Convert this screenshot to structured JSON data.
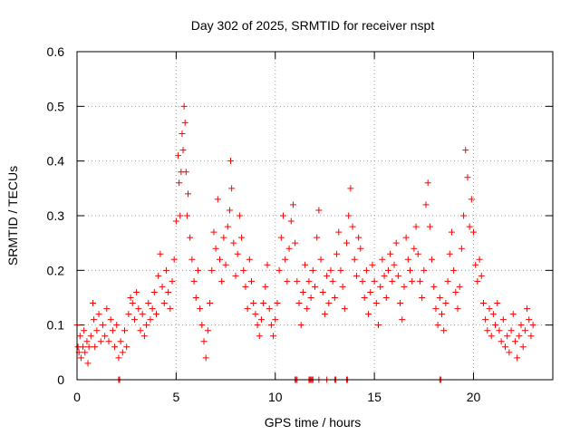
{
  "chart_data": {
    "type": "scatter",
    "title": "Day 302 of 2025, SRMTID for receiver nspt",
    "xlabel": "GPS time / hours",
    "ylabel": "SRMTID / TECUs",
    "xlim": [
      0,
      24
    ],
    "ylim": [
      0,
      0.6
    ],
    "grid": true,
    "x_ticks": [
      0,
      5,
      10,
      15,
      20
    ],
    "x_tick_labels": [
      "0",
      "5",
      "10",
      "15",
      "20"
    ],
    "y_ticks": [
      0,
      0.1,
      0.2,
      0.3,
      0.4,
      0.5,
      0.6
    ],
    "y_tick_labels": [
      "0",
      "0.1",
      "0.2",
      "0.3",
      "0.4",
      "0.5",
      "0.6"
    ],
    "marker": "+",
    "marker_color": "#ff0000",
    "series": [
      {
        "name": "SRMTID",
        "points": [
          [
            0.0,
            0.1
          ],
          [
            0.05,
            0.06
          ],
          [
            0.1,
            0.05
          ],
          [
            0.15,
            0.08
          ],
          [
            0.2,
            0.04
          ],
          [
            0.3,
            0.06
          ],
          [
            0.35,
            0.09
          ],
          [
            0.4,
            0.05
          ],
          [
            0.5,
            0.07
          ],
          [
            0.55,
            0.03
          ],
          [
            0.6,
            0.06
          ],
          [
            0.7,
            0.08
          ],
          [
            0.8,
            0.14
          ],
          [
            0.85,
            0.11
          ],
          [
            0.9,
            0.06
          ],
          [
            1.0,
            0.09
          ],
          [
            1.1,
            0.12
          ],
          [
            1.2,
            0.07
          ],
          [
            1.3,
            0.1
          ],
          [
            1.4,
            0.08
          ],
          [
            1.5,
            0.13
          ],
          [
            1.6,
            0.07
          ],
          [
            1.7,
            0.11
          ],
          [
            1.8,
            0.09
          ],
          [
            1.9,
            0.06
          ],
          [
            2.0,
            0.1
          ],
          [
            2.1,
            0.04
          ],
          [
            2.2,
            0.07
          ],
          [
            2.3,
            0.05
          ],
          [
            2.4,
            0.09
          ],
          [
            2.5,
            0.06
          ],
          [
            2.6,
            0.12
          ],
          [
            2.7,
            0.15
          ],
          [
            2.8,
            0.14
          ],
          [
            2.9,
            0.11
          ],
          [
            3.0,
            0.16
          ],
          [
            3.1,
            0.13
          ],
          [
            3.2,
            0.09
          ],
          [
            3.3,
            0.12
          ],
          [
            3.4,
            0.08
          ],
          [
            3.5,
            0.1
          ],
          [
            3.6,
            0.14
          ],
          [
            3.7,
            0.11
          ],
          [
            3.8,
            0.13
          ],
          [
            3.9,
            0.16
          ],
          [
            4.0,
            0.12
          ],
          [
            4.1,
            0.19
          ],
          [
            4.2,
            0.23
          ],
          [
            4.3,
            0.17
          ],
          [
            4.4,
            0.14
          ],
          [
            4.5,
            0.2
          ],
          [
            4.6,
            0.16
          ],
          [
            4.7,
            0.13
          ],
          [
            4.8,
            0.18
          ],
          [
            4.9,
            0.22
          ],
          [
            5.0,
            0.29
          ],
          [
            5.1,
            0.41
          ],
          [
            5.15,
            0.36
          ],
          [
            5.2,
            0.3
          ],
          [
            5.25,
            0.38
          ],
          [
            5.3,
            0.45
          ],
          [
            5.35,
            0.42
          ],
          [
            5.4,
            0.5
          ],
          [
            5.45,
            0.47
          ],
          [
            5.5,
            0.38
          ],
          [
            5.55,
            0.3
          ],
          [
            5.6,
            0.34
          ],
          [
            5.7,
            0.26
          ],
          [
            5.8,
            0.22
          ],
          [
            5.9,
            0.18
          ],
          [
            6.0,
            0.15
          ],
          [
            6.1,
            0.2
          ],
          [
            6.2,
            0.13
          ],
          [
            6.3,
            0.1
          ],
          [
            6.4,
            0.07
          ],
          [
            6.5,
            0.04
          ],
          [
            6.6,
            0.09
          ],
          [
            6.7,
            0.14
          ],
          [
            6.8,
            0.2
          ],
          [
            6.9,
            0.27
          ],
          [
            7.0,
            0.24
          ],
          [
            7.1,
            0.33
          ],
          [
            7.2,
            0.22
          ],
          [
            7.3,
            0.18
          ],
          [
            7.4,
            0.26
          ],
          [
            7.5,
            0.21
          ],
          [
            7.6,
            0.28
          ],
          [
            7.7,
            0.31
          ],
          [
            7.75,
            0.4
          ],
          [
            7.8,
            0.35
          ],
          [
            7.9,
            0.25
          ],
          [
            8.0,
            0.19
          ],
          [
            8.1,
            0.23
          ],
          [
            8.2,
            0.3
          ],
          [
            8.3,
            0.26
          ],
          [
            8.4,
            0.2
          ],
          [
            8.5,
            0.17
          ],
          [
            8.6,
            0.13
          ],
          [
            8.7,
            0.22
          ],
          [
            8.8,
            0.18
          ],
          [
            8.9,
            0.14
          ],
          [
            9.0,
            0.12
          ],
          [
            9.1,
            0.1
          ],
          [
            9.2,
            0.08
          ],
          [
            9.3,
            0.11
          ],
          [
            9.4,
            0.14
          ],
          [
            9.5,
            0.17
          ],
          [
            9.6,
            0.21
          ],
          [
            9.7,
            0.13
          ],
          [
            9.8,
            0.1
          ],
          [
            9.9,
            0.08
          ],
          [
            10.0,
            0.11
          ],
          [
            10.1,
            0.14
          ],
          [
            10.2,
            0.2
          ],
          [
            10.3,
            0.26
          ],
          [
            10.4,
            0.3
          ],
          [
            10.5,
            0.22
          ],
          [
            10.6,
            0.18
          ],
          [
            10.7,
            0.24
          ],
          [
            10.8,
            0.29
          ],
          [
            10.9,
            0.32
          ],
          [
            11.0,
            0.25
          ],
          [
            11.1,
            0.18
          ],
          [
            11.2,
            0.14
          ],
          [
            11.3,
            0.1
          ],
          [
            11.4,
            0.16
          ],
          [
            11.5,
            0.21
          ],
          [
            11.6,
            0.13
          ],
          [
            11.7,
            0.18
          ],
          [
            11.8,
            0.15
          ],
          [
            11.9,
            0.2
          ],
          [
            12.0,
            0.17
          ],
          [
            12.1,
            0.26
          ],
          [
            12.2,
            0.31
          ],
          [
            12.3,
            0.22
          ],
          [
            12.4,
            0.16
          ],
          [
            12.5,
            0.12
          ],
          [
            12.6,
            0.19
          ],
          [
            12.7,
            0.14
          ],
          [
            12.8,
            0.2
          ],
          [
            12.9,
            0.18
          ],
          [
            13.0,
            0.15
          ],
          [
            13.1,
            0.23
          ],
          [
            13.2,
            0.27
          ],
          [
            13.3,
            0.2
          ],
          [
            13.4,
            0.17
          ],
          [
            13.5,
            0.13
          ],
          [
            13.6,
            0.25
          ],
          [
            13.7,
            0.3
          ],
          [
            13.8,
            0.35
          ],
          [
            13.9,
            0.28
          ],
          [
            14.0,
            0.22
          ],
          [
            14.1,
            0.19
          ],
          [
            14.2,
            0.26
          ],
          [
            14.3,
            0.24
          ],
          [
            14.4,
            0.18
          ],
          [
            14.5,
            0.15
          ],
          [
            14.6,
            0.2
          ],
          [
            14.7,
            0.12
          ],
          [
            14.8,
            0.16
          ],
          [
            14.9,
            0.21
          ],
          [
            15.0,
            0.18
          ],
          [
            15.1,
            0.14
          ],
          [
            15.2,
            0.1
          ],
          [
            15.3,
            0.17
          ],
          [
            15.4,
            0.22
          ],
          [
            15.5,
            0.19
          ],
          [
            15.6,
            0.15
          ],
          [
            15.7,
            0.2
          ],
          [
            15.8,
            0.23
          ],
          [
            15.9,
            0.18
          ],
          [
            16.0,
            0.21
          ],
          [
            16.1,
            0.25
          ],
          [
            16.2,
            0.19
          ],
          [
            16.3,
            0.14
          ],
          [
            16.4,
            0.11
          ],
          [
            16.5,
            0.17
          ],
          [
            16.6,
            0.26
          ],
          [
            16.7,
            0.22
          ],
          [
            16.8,
            0.2
          ],
          [
            16.9,
            0.18
          ],
          [
            17.0,
            0.24
          ],
          [
            17.1,
            0.28
          ],
          [
            17.2,
            0.23
          ],
          [
            17.3,
            0.18
          ],
          [
            17.4,
            0.15
          ],
          [
            17.5,
            0.2
          ],
          [
            17.6,
            0.32
          ],
          [
            17.7,
            0.36
          ],
          [
            17.8,
            0.28
          ],
          [
            17.9,
            0.22
          ],
          [
            18.0,
            0.17
          ],
          [
            18.1,
            0.13
          ],
          [
            18.2,
            0.1
          ],
          [
            18.3,
            0.15
          ],
          [
            18.4,
            0.12
          ],
          [
            18.5,
            0.09
          ],
          [
            18.6,
            0.14
          ],
          [
            18.7,
            0.18
          ],
          [
            18.8,
            0.23
          ],
          [
            18.9,
            0.27
          ],
          [
            19.0,
            0.2
          ],
          [
            19.1,
            0.16
          ],
          [
            19.2,
            0.13
          ],
          [
            19.3,
            0.17
          ],
          [
            19.4,
            0.24
          ],
          [
            19.5,
            0.3
          ],
          [
            19.6,
            0.42
          ],
          [
            19.7,
            0.37
          ],
          [
            19.8,
            0.28
          ],
          [
            19.9,
            0.33
          ],
          [
            20.0,
            0.27
          ],
          [
            20.1,
            0.21
          ],
          [
            20.2,
            0.18
          ],
          [
            20.3,
            0.22
          ],
          [
            20.4,
            0.19
          ],
          [
            20.5,
            0.14
          ],
          [
            20.6,
            0.11
          ],
          [
            20.7,
            0.09
          ],
          [
            20.8,
            0.13
          ],
          [
            20.9,
            0.08
          ],
          [
            21.0,
            0.12
          ],
          [
            21.1,
            0.1
          ],
          [
            21.2,
            0.14
          ],
          [
            21.3,
            0.09
          ],
          [
            21.4,
            0.07
          ],
          [
            21.5,
            0.11
          ],
          [
            21.6,
            0.06
          ],
          [
            21.7,
            0.08
          ],
          [
            21.8,
            0.05
          ],
          [
            21.9,
            0.09
          ],
          [
            22.0,
            0.12
          ],
          [
            22.1,
            0.07
          ],
          [
            22.2,
            0.04
          ],
          [
            22.3,
            0.08
          ],
          [
            22.4,
            0.1
          ],
          [
            22.5,
            0.06
          ],
          [
            22.6,
            0.09
          ],
          [
            22.7,
            0.13
          ],
          [
            22.8,
            0.11
          ],
          [
            22.9,
            0.08
          ],
          [
            23.0,
            0.1
          ],
          [
            2.1,
            0.0
          ],
          [
            2.15,
            0.0
          ],
          [
            11.0,
            0.0
          ],
          [
            11.05,
            0.0
          ],
          [
            11.1,
            0.0
          ],
          [
            11.7,
            0.0
          ],
          [
            11.75,
            0.0
          ],
          [
            11.8,
            0.0
          ],
          [
            11.85,
            0.0
          ],
          [
            11.9,
            0.0
          ],
          [
            12.2,
            0.0
          ],
          [
            12.6,
            0.0
          ],
          [
            13.0,
            0.0
          ],
          [
            13.05,
            0.0
          ],
          [
            13.6,
            0.0
          ],
          [
            13.65,
            0.0
          ],
          [
            18.3,
            0.0
          ],
          [
            18.35,
            0.0
          ]
        ]
      }
    ]
  }
}
